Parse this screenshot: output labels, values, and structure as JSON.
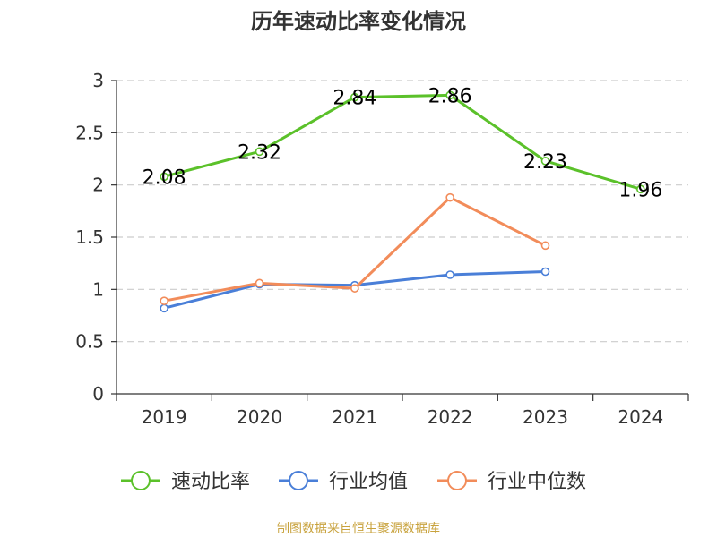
{
  "chart_data": {
    "type": "line",
    "title": "历年速动比率变化情况",
    "categories": [
      "2019",
      "2020",
      "2021",
      "2022",
      "2023",
      "2024"
    ],
    "ylim": [
      0,
      3
    ],
    "yticks": [
      "0",
      "0.5",
      "1",
      "1.5",
      "2",
      "2.5",
      "3"
    ],
    "grid": true,
    "legend_position": "bottom",
    "series": [
      {
        "name": "速动比率",
        "color": "#5bc12a",
        "values": [
          2.08,
          2.32,
          2.84,
          2.86,
          2.23,
          1.96
        ],
        "labels": [
          "2.08",
          "2.32",
          "2.84",
          "2.86",
          "2.23",
          "1.96"
        ]
      },
      {
        "name": "行业均值",
        "color": "#4a7fd8",
        "values": [
          0.82,
          1.05,
          1.04,
          1.14,
          1.17,
          null
        ]
      },
      {
        "name": "行业中位数",
        "color": "#f28c5a",
        "values": [
          0.89,
          1.06,
          1.01,
          1.88,
          1.42,
          null
        ]
      }
    ],
    "source": "制图数据来自恒生聚源数据库"
  }
}
